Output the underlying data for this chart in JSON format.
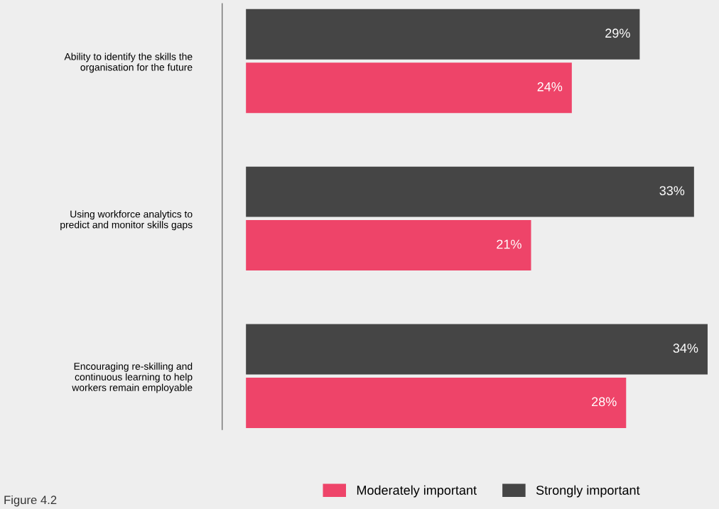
{
  "chart_data": {
    "type": "bar",
    "orientation": "horizontal",
    "legend": "bottom",
    "grid": false,
    "categories": [
      "Ability to identify the skills the\norganisation for the future",
      "Using workforce analytics to\npredict and monitor skills gaps",
      "Encouraging re-skilling and\ncontinuous learning to help\nworkers remain employable"
    ],
    "series": [
      {
        "name": "Strongly important",
        "color": "#454545",
        "values": [
          29,
          33,
          34
        ],
        "value_labels": [
          "29%",
          "33%",
          "34%"
        ]
      },
      {
        "name": "Moderately important",
        "color": "#ee4469",
        "values": [
          24,
          21,
          28
        ],
        "value_labels": [
          "24%",
          "21%",
          "28%"
        ]
      }
    ],
    "annotations": [
      "Figure 4.2"
    ]
  }
}
